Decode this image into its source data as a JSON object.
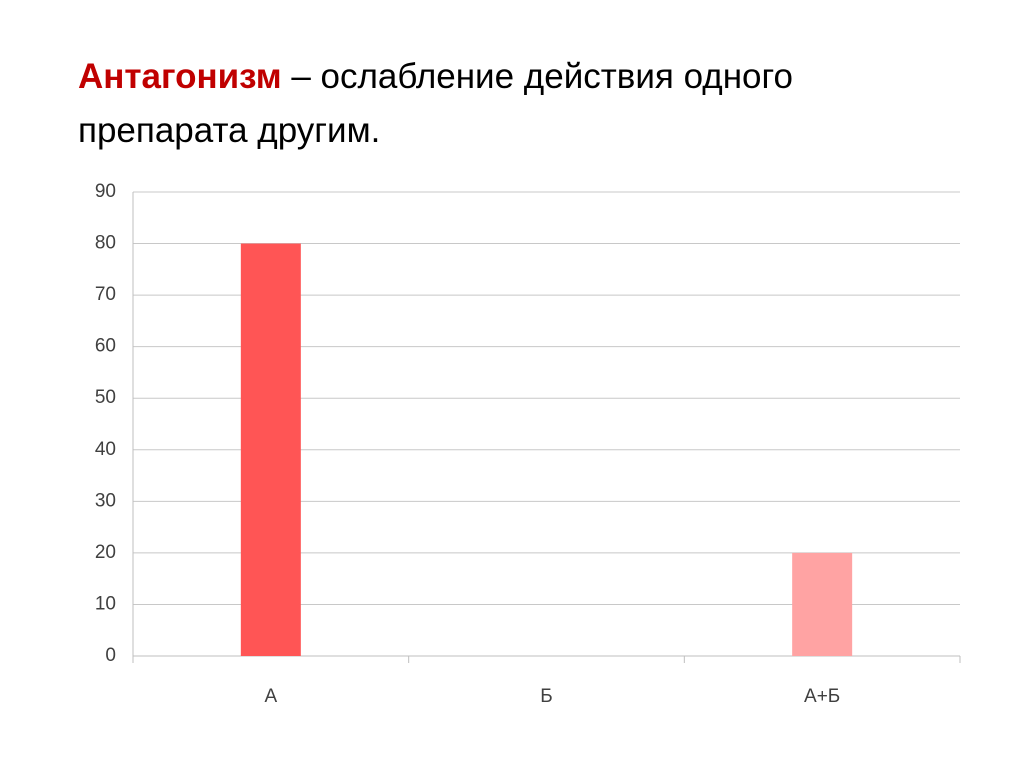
{
  "chart_data": {
    "type": "bar",
    "title_term": "Антагонизм",
    "title_rest": "– ослабление действия одного препарата другим.",
    "categories": [
      "А",
      "Б",
      "А+Б"
    ],
    "values": [
      80,
      0,
      20
    ],
    "colors": [
      "#ff5555",
      "#ff5555",
      "#ffa3a3"
    ],
    "ylim": [
      0,
      90
    ],
    "yticks": [
      0,
      10,
      20,
      30,
      40,
      50,
      60,
      70,
      80,
      90
    ],
    "grid": true
  }
}
